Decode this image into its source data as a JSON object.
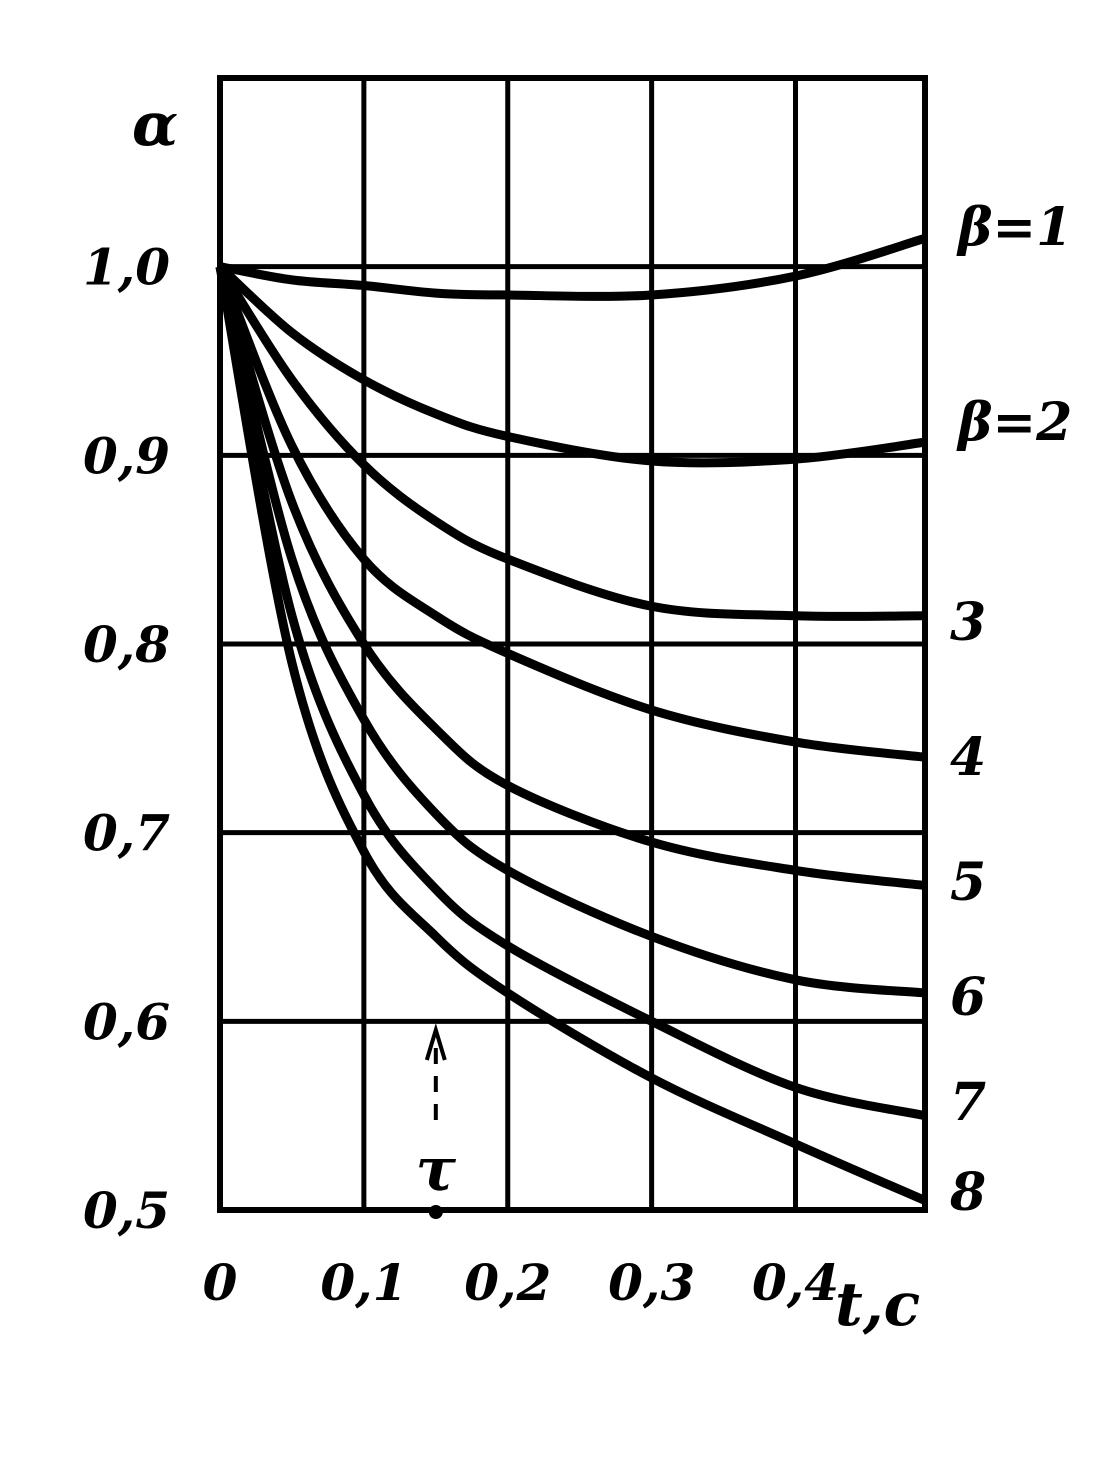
{
  "chart_data": {
    "type": "line",
    "title": "",
    "ylabel": "α",
    "xlabel": "t,c",
    "xlim": [
      0,
      0.49
    ],
    "ylim": [
      0.5,
      1.1
    ],
    "grid": true,
    "x_ticks": [
      0,
      0.1,
      0.2,
      0.3,
      0.4
    ],
    "x_tick_labels": [
      "0",
      "0,1",
      "0,2",
      "0,3",
      "0,4"
    ],
    "y_ticks": [
      0.5,
      0.6,
      0.7,
      0.8,
      0.9,
      1.0
    ],
    "y_tick_labels": [
      "0,5",
      "0,6",
      "0,7",
      "0,8",
      "0,9",
      "1,0"
    ],
    "annotation": {
      "label": "τ",
      "x": 0.15
    },
    "x": [
      0,
      0.05,
      0.1,
      0.15,
      0.2,
      0.3,
      0.4,
      0.49
    ],
    "series": [
      {
        "name": "β=1",
        "values": [
          1.0,
          0.993,
          0.99,
          0.986,
          0.985,
          0.985,
          0.995,
          1.015
        ]
      },
      {
        "name": "β=2",
        "values": [
          1.0,
          0.965,
          0.94,
          0.922,
          0.91,
          0.897,
          0.898,
          0.907
        ]
      },
      {
        "name": "3",
        "values": [
          1.0,
          0.94,
          0.895,
          0.865,
          0.845,
          0.82,
          0.815,
          0.815
        ]
      },
      {
        "name": "4",
        "values": [
          1.0,
          0.905,
          0.845,
          0.815,
          0.795,
          0.765,
          0.748,
          0.74
        ]
      },
      {
        "name": "5",
        "values": [
          1.0,
          0.875,
          0.8,
          0.755,
          0.725,
          0.695,
          0.68,
          0.672
        ]
      },
      {
        "name": "6",
        "values": [
          1.0,
          0.845,
          0.76,
          0.71,
          0.68,
          0.645,
          0.622,
          0.615
        ]
      },
      {
        "name": "7",
        "values": [
          1.0,
          0.815,
          0.72,
          0.67,
          0.64,
          0.6,
          0.565,
          0.55
        ]
      },
      {
        "name": "8",
        "values": [
          1.0,
          0.79,
          0.69,
          0.645,
          0.615,
          0.57,
          0.535,
          0.505
        ]
      }
    ],
    "colors": {
      "line": "#000000",
      "background": "#ffffff"
    }
  }
}
